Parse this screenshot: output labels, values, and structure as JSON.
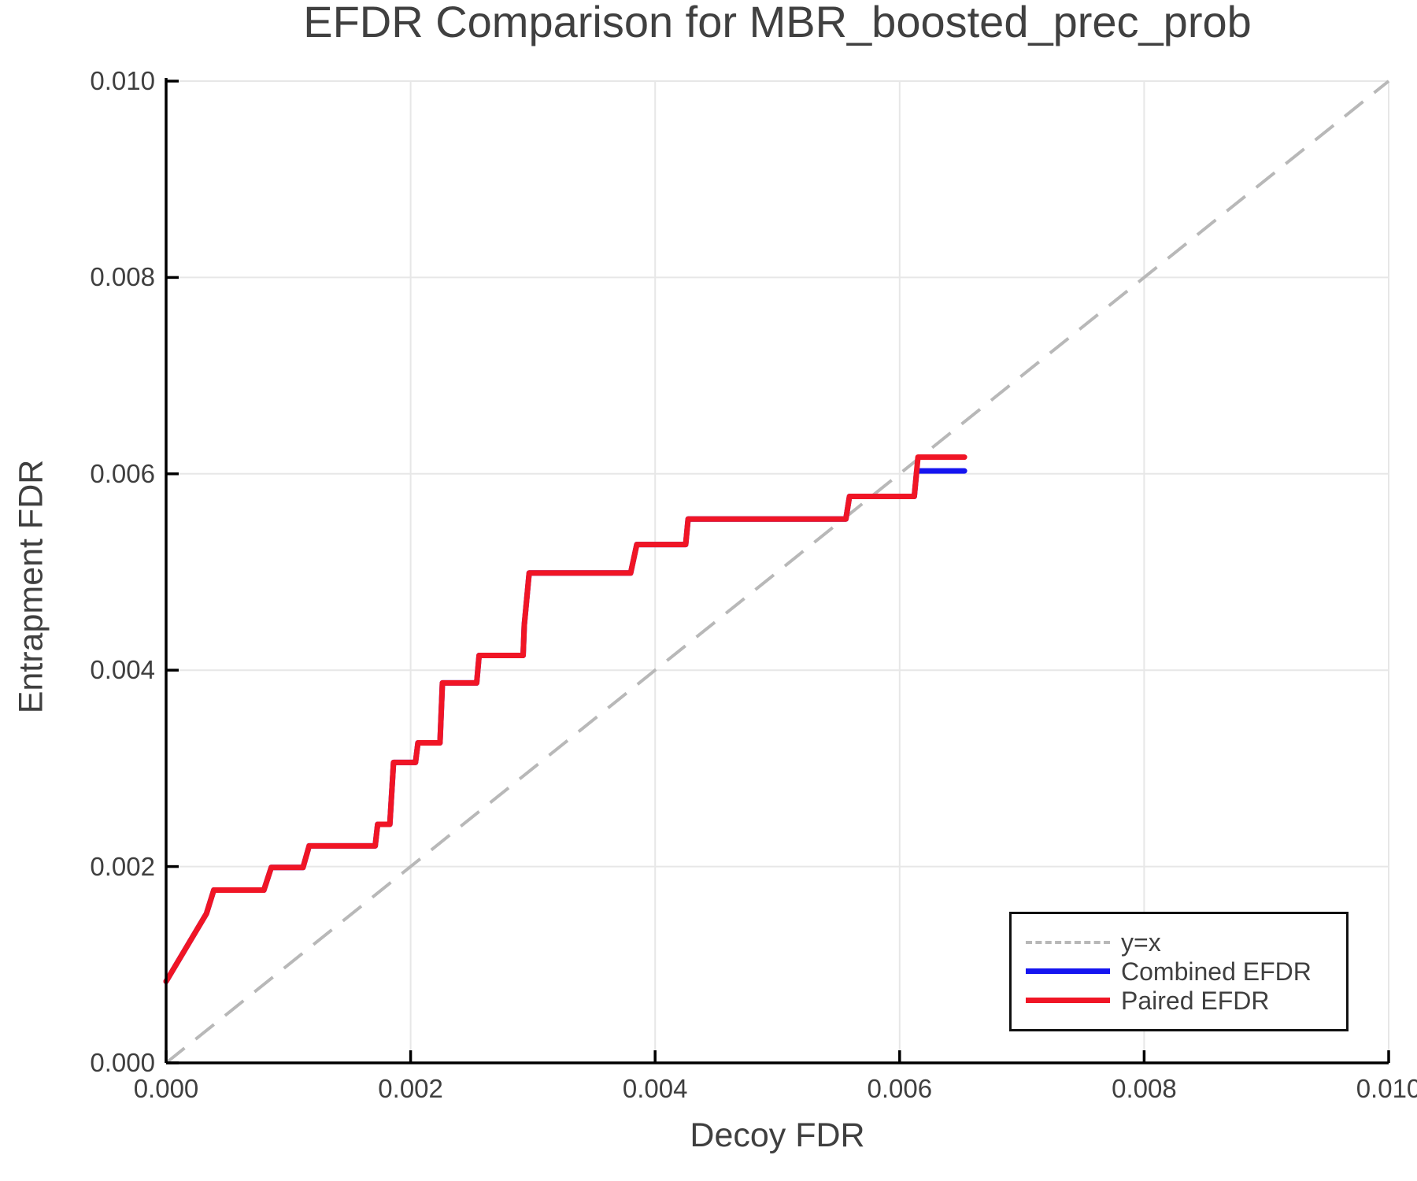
{
  "chart_data": {
    "type": "line",
    "title": "EFDR Comparison for MBR_boosted_prec_prob",
    "xlabel": "Decoy FDR",
    "ylabel": "Entrapment FDR",
    "xlim": [
      0.0,
      0.01
    ],
    "ylim": [
      0.0,
      0.01
    ],
    "grid": true,
    "xticks": [
      0.0,
      0.002,
      0.004,
      0.006,
      0.008,
      0.01
    ],
    "yticks": [
      0.0,
      0.002,
      0.004,
      0.006,
      0.008,
      0.01
    ],
    "xtick_labels": [
      "0.000",
      "0.002",
      "0.004",
      "0.006",
      "0.008",
      "0.010"
    ],
    "ytick_labels": [
      "0.000",
      "0.002",
      "0.004",
      "0.006",
      "0.008",
      "0.010"
    ],
    "colors": {
      "grid": "#e7e7e7",
      "spine": "#000000",
      "text": "#3f3f3f",
      "identity": "#b8b8b8",
      "combined": "#1515f0",
      "paired": "#f01525"
    },
    "legend": {
      "position": "lower right",
      "entries": [
        {
          "label": "y=x",
          "color": "#b8b8b8",
          "style": "dashed"
        },
        {
          "label": "Combined EFDR",
          "color": "#1515f0",
          "style": "solid"
        },
        {
          "label": "Paired EFDR",
          "color": "#f01525",
          "style": "solid"
        }
      ]
    },
    "series": [
      {
        "name": "y=x",
        "style": "dashed",
        "color": "#b8b8b8",
        "width": 4,
        "points": [
          [
            0.0,
            0.0
          ],
          [
            0.01,
            0.01
          ]
        ]
      },
      {
        "name": "Combined EFDR",
        "style": "solid",
        "color": "#1515f0",
        "width": 7,
        "points": [
          [
            0.0,
            0.00083
          ],
          [
            0.00033,
            0.00152
          ],
          [
            0.00039,
            0.00176
          ],
          [
            0.0008,
            0.00176
          ],
          [
            0.00086,
            0.00199
          ],
          [
            0.00112,
            0.00199
          ],
          [
            0.00117,
            0.00221
          ],
          [
            0.00171,
            0.00221
          ],
          [
            0.00173,
            0.00243
          ],
          [
            0.00183,
            0.00243
          ],
          [
            0.00186,
            0.00306
          ],
          [
            0.00204,
            0.00306
          ],
          [
            0.00206,
            0.00326
          ],
          [
            0.00224,
            0.00326
          ],
          [
            0.00226,
            0.00387
          ],
          [
            0.00254,
            0.00387
          ],
          [
            0.00256,
            0.00415
          ],
          [
            0.00292,
            0.00415
          ],
          [
            0.00293,
            0.00446
          ],
          [
            0.00297,
            0.00499
          ],
          [
            0.0038,
            0.00499
          ],
          [
            0.00385,
            0.00528
          ],
          [
            0.00425,
            0.00528
          ],
          [
            0.00427,
            0.00554
          ],
          [
            0.00556,
            0.00554
          ],
          [
            0.00559,
            0.00577
          ],
          [
            0.00612,
            0.00577
          ],
          [
            0.00614,
            0.00603
          ],
          [
            0.00653,
            0.00603
          ]
        ]
      },
      {
        "name": "Paired EFDR",
        "style": "solid",
        "color": "#f01525",
        "width": 7,
        "points": [
          [
            0.0,
            0.00083
          ],
          [
            0.00033,
            0.00152
          ],
          [
            0.00039,
            0.00176
          ],
          [
            0.0008,
            0.00176
          ],
          [
            0.00086,
            0.00199
          ],
          [
            0.00112,
            0.00199
          ],
          [
            0.00117,
            0.00221
          ],
          [
            0.00171,
            0.00221
          ],
          [
            0.00173,
            0.00243
          ],
          [
            0.00183,
            0.00243
          ],
          [
            0.00186,
            0.00306
          ],
          [
            0.00204,
            0.00306
          ],
          [
            0.00206,
            0.00326
          ],
          [
            0.00224,
            0.00326
          ],
          [
            0.00226,
            0.00387
          ],
          [
            0.00254,
            0.00387
          ],
          [
            0.00256,
            0.00415
          ],
          [
            0.00292,
            0.00415
          ],
          [
            0.00293,
            0.00446
          ],
          [
            0.00297,
            0.00499
          ],
          [
            0.0038,
            0.00499
          ],
          [
            0.00385,
            0.00528
          ],
          [
            0.00425,
            0.00528
          ],
          [
            0.00427,
            0.00554
          ],
          [
            0.00556,
            0.00554
          ],
          [
            0.00559,
            0.00577
          ],
          [
            0.00612,
            0.00577
          ],
          [
            0.00615,
            0.00617
          ],
          [
            0.00653,
            0.00617
          ]
        ]
      }
    ]
  }
}
